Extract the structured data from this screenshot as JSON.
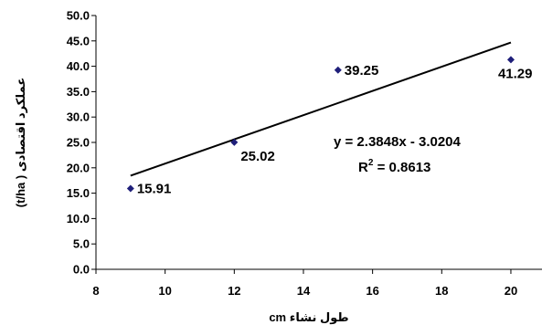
{
  "chart_data": {
    "type": "scatter",
    "title": "",
    "xlabel": "طول نشاء cm",
    "ylabel": "عملکرد اقتصادی ( t/ha)",
    "xlim": [
      8,
      20
    ],
    "ylim": [
      0,
      50
    ],
    "xticks": [
      "8",
      "10",
      "12",
      "14",
      "16",
      "18",
      "20"
    ],
    "yticks": [
      "0.0",
      "5.0",
      "10.0",
      "15.0",
      "20.0",
      "25.0",
      "30.0",
      "35.0",
      "40.0",
      "45.0",
      "50.0"
    ],
    "grid": false,
    "legend": "none",
    "series": [
      {
        "x": [
          9,
          12,
          15,
          20
        ],
        "y": [
          15.91,
          25.02,
          39.25,
          41.29
        ],
        "labels": [
          "15.91",
          "25.02",
          "39.25",
          "41.29"
        ],
        "marker": "diamond",
        "color": "#1f1f7a"
      }
    ],
    "trendline": {
      "type": "linear",
      "slope": 2.3848,
      "intercept": -3.0204,
      "x_range": [
        9,
        20
      ],
      "color": "#000000"
    },
    "annotations": {
      "equation": "y = 2.3848x - 3.0204",
      "r2_prefix": "R",
      "r2_sup": "2",
      "r2_value": " = 0.8613"
    }
  }
}
